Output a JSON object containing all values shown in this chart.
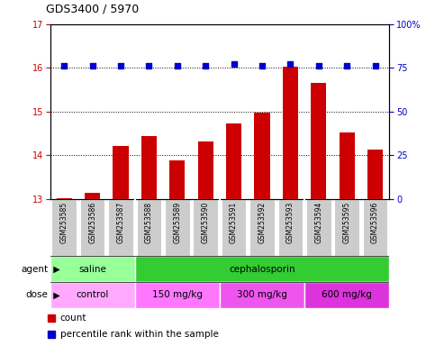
{
  "title": "GDS3400 / 5970",
  "samples": [
    "GSM253585",
    "GSM253586",
    "GSM253587",
    "GSM253588",
    "GSM253589",
    "GSM253590",
    "GSM253591",
    "GSM253592",
    "GSM253593",
    "GSM253594",
    "GSM253595",
    "GSM253596"
  ],
  "bar_values": [
    13.02,
    13.13,
    14.22,
    14.44,
    13.88,
    14.32,
    14.72,
    14.97,
    16.02,
    15.65,
    14.52,
    14.14
  ],
  "percentile_values": [
    76,
    76,
    76,
    76,
    76,
    76,
    77,
    76,
    77,
    76,
    76,
    76
  ],
  "bar_color": "#cc0000",
  "dot_color": "#0000cc",
  "ylim_left": [
    13,
    17
  ],
  "ylim_right": [
    0,
    100
  ],
  "yticks_left": [
    13,
    14,
    15,
    16,
    17
  ],
  "yticks_right": [
    0,
    25,
    50,
    75,
    100
  ],
  "yticklabels_right": [
    "0",
    "25",
    "50",
    "75",
    "100%"
  ],
  "agent_row": [
    {
      "label": "saline",
      "start": 0,
      "end": 3,
      "color": "#99ff99"
    },
    {
      "label": "cephalosporin",
      "start": 3,
      "end": 12,
      "color": "#33cc33"
    }
  ],
  "dose_row": [
    {
      "label": "control",
      "start": 0,
      "end": 3,
      "color": "#ffaaff"
    },
    {
      "label": "150 mg/kg",
      "start": 3,
      "end": 6,
      "color": "#ff77ff"
    },
    {
      "label": "300 mg/kg",
      "start": 6,
      "end": 9,
      "color": "#ee55ee"
    },
    {
      "label": "600 mg/kg",
      "start": 9,
      "end": 12,
      "color": "#dd33dd"
    }
  ],
  "agent_label": "agent",
  "dose_label": "dose",
  "legend_count_label": "count",
  "legend_pct_label": "percentile rank within the sample",
  "sample_bg_color": "#cccccc",
  "plot_bg": "#ffffff",
  "tick_color_left": "#cc0000",
  "tick_color_right": "#0000cc",
  "fig_width": 4.83,
  "fig_height": 3.84,
  "dpi": 100
}
